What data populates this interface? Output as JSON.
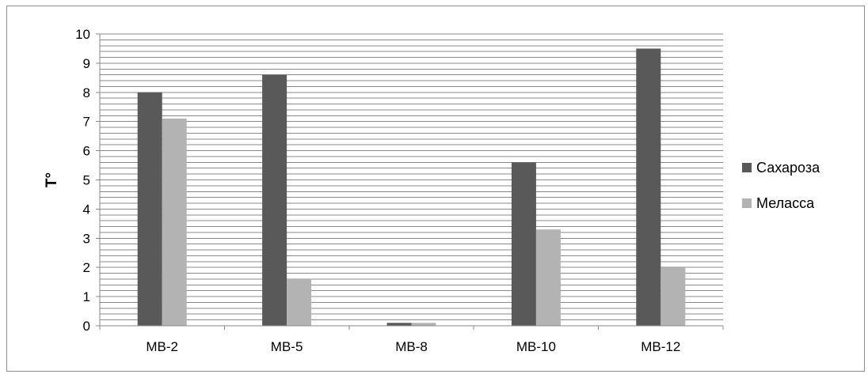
{
  "chart_data": {
    "type": "bar",
    "categories": [
      "МВ-2",
      "МВ-5",
      "МВ-8",
      "МВ-10",
      "МВ-12"
    ],
    "series": [
      {
        "name": "Сахароза",
        "values": [
          8.0,
          8.6,
          0.1,
          5.6,
          9.5
        ],
        "color": "#595959"
      },
      {
        "name": "Меласса",
        "values": [
          7.1,
          1.6,
          0.1,
          3.3,
          2.0
        ],
        "color": "#b3b3b3"
      }
    ],
    "title": "",
    "xlabel": "",
    "ylabel": "T°",
    "ylim": [
      0,
      10
    ],
    "yticks": [
      "0",
      "1",
      "2",
      "3",
      "4",
      "5",
      "6",
      "7",
      "8",
      "9",
      "10"
    ],
    "grid": true,
    "legend_position": "right"
  }
}
